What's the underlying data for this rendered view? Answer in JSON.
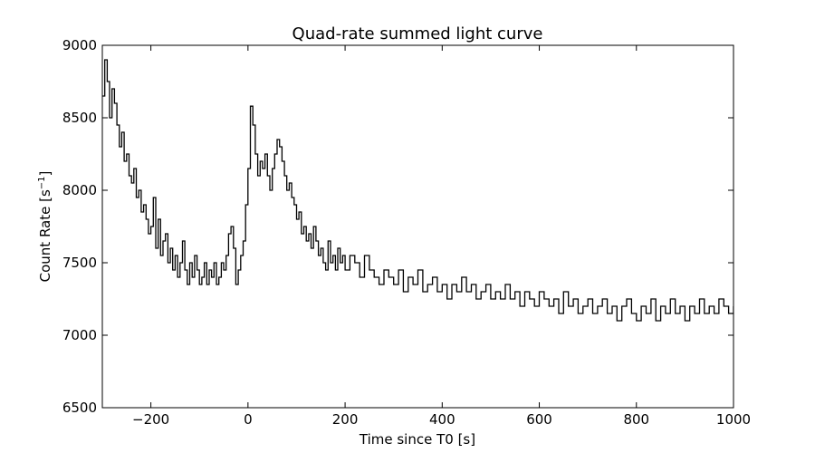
{
  "chart_data": {
    "type": "line",
    "title": "Quad-rate summed light curve",
    "xlabel": "Time since T0 [s]",
    "ylabel_main": "Count Rate [s",
    "ylabel_sup": "−1",
    "ylabel_end": "]",
    "xlim": [
      -300,
      1000
    ],
    "ylim": [
      6500,
      9000
    ],
    "x_ticks": [
      -200,
      0,
      200,
      400,
      600,
      800,
      1000
    ],
    "x_tick_labels": [
      "−200",
      "0",
      "200",
      "400",
      "600",
      "800",
      "1000"
    ],
    "y_ticks": [
      6500,
      7000,
      7500,
      8000,
      8500,
      9000
    ],
    "y_tick_labels": [
      "6500",
      "7000",
      "7500",
      "8000",
      "8500",
      "9000"
    ],
    "grid": false,
    "line_color": "#000000",
    "series": [
      {
        "step": "post",
        "x": [
          -300,
          -295,
          -290,
          -285,
          -280,
          -275,
          -270,
          -265,
          -260,
          -255,
          -250,
          -245,
          -240,
          -235,
          -230,
          -225,
          -220,
          -215,
          -210,
          -205,
          -200,
          -195,
          -190,
          -185,
          -180,
          -175,
          -170,
          -165,
          -160,
          -155,
          -150,
          -145,
          -140,
          -135,
          -130,
          -125,
          -120,
          -115,
          -110,
          -105,
          -100,
          -95,
          -90,
          -85,
          -80,
          -75,
          -70,
          -65,
          -60,
          -55,
          -50,
          -45,
          -40,
          -35,
          -30,
          -25,
          -20,
          -15,
          -10,
          -5,
          0,
          5,
          10,
          15,
          20,
          25,
          30,
          35,
          40,
          45,
          50,
          55,
          60,
          65,
          70,
          75,
          80,
          85,
          90,
          95,
          100,
          105,
          110,
          115,
          120,
          125,
          130,
          135,
          140,
          145,
          150,
          155,
          160,
          165,
          170,
          175,
          180,
          185,
          190,
          195,
          200,
          210,
          220,
          230,
          240,
          250,
          260,
          270,
          280,
          290,
          300,
          310,
          320,
          330,
          340,
          350,
          360,
          370,
          380,
          390,
          400,
          410,
          420,
          430,
          440,
          450,
          460,
          470,
          480,
          490,
          500,
          510,
          520,
          530,
          540,
          550,
          560,
          570,
          580,
          590,
          600,
          610,
          620,
          630,
          640,
          650,
          660,
          670,
          680,
          690,
          700,
          710,
          720,
          730,
          740,
          750,
          760,
          770,
          780,
          790,
          800,
          810,
          820,
          830,
          840,
          850,
          860,
          870,
          880,
          890,
          900,
          910,
          920,
          930,
          940,
          950,
          960,
          970,
          980,
          990,
          1000
        ],
        "y": [
          8650,
          8900,
          8750,
          8500,
          8700,
          8600,
          8450,
          8300,
          8400,
          8200,
          8250,
          8100,
          8050,
          8150,
          7950,
          8000,
          7850,
          7900,
          7800,
          7700,
          7750,
          7950,
          7600,
          7800,
          7550,
          7650,
          7700,
          7500,
          7600,
          7450,
          7550,
          7400,
          7500,
          7650,
          7450,
          7350,
          7500,
          7400,
          7550,
          7450,
          7350,
          7400,
          7500,
          7350,
          7450,
          7400,
          7500,
          7350,
          7400,
          7500,
          7450,
          7550,
          7700,
          7750,
          7600,
          7350,
          7450,
          7550,
          7650,
          7900,
          8150,
          8580,
          8450,
          8250,
          8100,
          8200,
          8150,
          8250,
          8100,
          8000,
          8150,
          8250,
          8350,
          8300,
          8200,
          8100,
          8000,
          8050,
          7950,
          7900,
          7800,
          7850,
          7700,
          7750,
          7650,
          7700,
          7600,
          7750,
          7650,
          7550,
          7600,
          7500,
          7450,
          7650,
          7500,
          7550,
          7450,
          7600,
          7500,
          7550,
          7450,
          7550,
          7500,
          7400,
          7550,
          7450,
          7400,
          7350,
          7450,
          7400,
          7350,
          7450,
          7300,
          7400,
          7350,
          7450,
          7300,
          7350,
          7400,
          7300,
          7350,
          7250,
          7350,
          7300,
          7400,
          7300,
          7350,
          7250,
          7300,
          7350,
          7250,
          7300,
          7250,
          7350,
          7250,
          7300,
          7200,
          7300,
          7250,
          7200,
          7300,
          7250,
          7200,
          7250,
          7150,
          7300,
          7200,
          7250,
          7150,
          7200,
          7250,
          7150,
          7200,
          7250,
          7150,
          7200,
          7100,
          7200,
          7250,
          7150,
          7100,
          7200,
          7150,
          7250,
          7100,
          7200,
          7150,
          7250,
          7150,
          7200,
          7100,
          7200,
          7150,
          7250,
          7150,
          7200,
          7150,
          7250,
          7200,
          7150,
          7200
        ]
      }
    ]
  }
}
